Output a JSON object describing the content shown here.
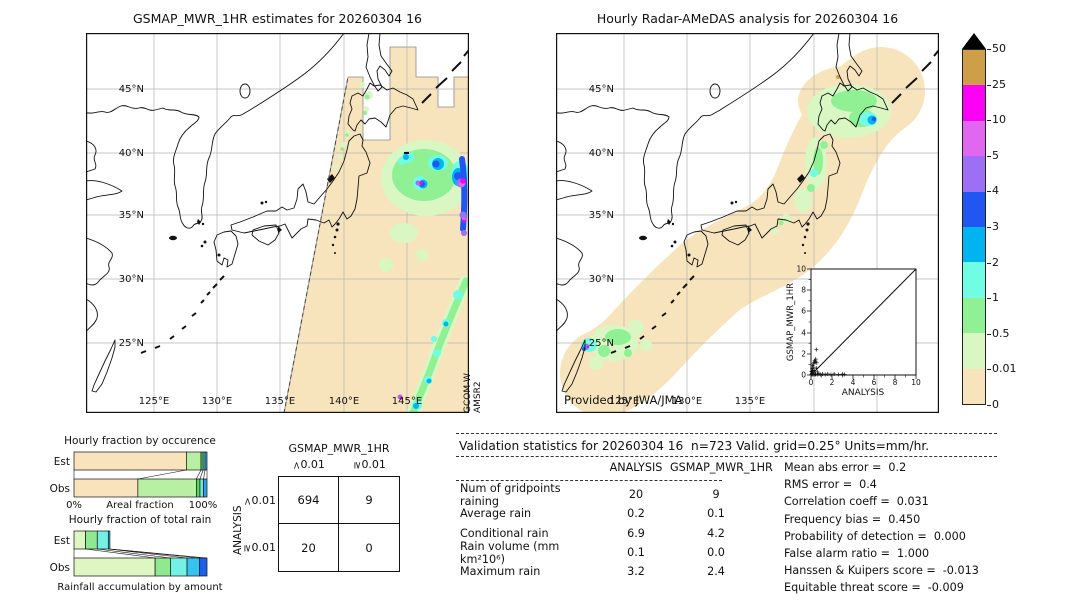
{
  "figure": {
    "background": "#ffffff"
  },
  "colorbar": {
    "tick_labels": [
      "50",
      "25",
      "10",
      "5",
      "4",
      "3",
      "2",
      "1",
      "0.5",
      "0.01",
      "0"
    ],
    "colors": [
      "#cf9e49",
      "#fb00f5",
      "#e167f0",
      "#9c6ff4",
      "#2156f2",
      "#00b5ef",
      "#70fde4",
      "#8ff193",
      "#d8f7c3",
      "#f8e4bc"
    ],
    "overflow_marker_color": "#000000"
  },
  "chart_data": [
    {
      "type": "map",
      "id": "gsmap_map",
      "title": "GSMAP_MWR_1HR estimates for 20260304 16",
      "lat_ticks": [
        "45°N",
        "40°N",
        "35°N",
        "30°N",
        "25°N"
      ],
      "lon_ticks": [
        "125°E",
        "130°E",
        "135°E",
        "140°E",
        "145°E"
      ],
      "side_annotation": [
        "GCOM-W",
        "AMSR2"
      ],
      "swath_fill": "#f8e4bc",
      "notes": "Satellite microwave swath over the western Pacific with rain cells east of Japan"
    },
    {
      "type": "map",
      "id": "radar_map",
      "title": "Hourly Radar-AMeDAS analysis for 20260304 16",
      "lat_ticks": [
        "45°N",
        "40°N",
        "35°N",
        "30°N",
        "25°N"
      ],
      "lon_ticks": [
        "125°E",
        "130°E",
        "135°E"
      ],
      "credit": "Provided by JWA/JMA",
      "coverage_fill": "#f8e4bc",
      "notes": "Radar coverage band along the Japanese archipelago with light rain over Hokkaido, Tohoku and near Taiwan"
    },
    {
      "type": "bar",
      "id": "occurrence",
      "title": "Hourly fraction by occurence",
      "orientation": "horizontal-stacked",
      "categories": [
        "Est",
        "Obs"
      ],
      "x_left_label": "0%",
      "xlabel": "Areal fraction",
      "x_right_label": "100%",
      "segment_colors": [
        "#f8e3bc",
        "#b9efa2",
        "#59d65e",
        "#6fe9df",
        "#2f9ff0"
      ],
      "series": [
        {
          "name": "Est",
          "fractions": [
            0.845,
            0.11,
            0.016,
            0.014,
            0.015
          ]
        },
        {
          "name": "Obs",
          "fractions": [
            0.48,
            0.44,
            0.027,
            0.027,
            0.026
          ]
        }
      ]
    },
    {
      "type": "bar",
      "id": "total_rain",
      "title": "Hourly fraction of total rain",
      "orientation": "horizontal-stacked",
      "categories": [
        "Est",
        "Obs"
      ],
      "xlabel": "Rainfall accumulation by amount",
      "segment_colors": [
        "#ddf6c2",
        "#8fe98f",
        "#74f1e2",
        "#38c2f2",
        "#1e60e8"
      ],
      "series": [
        {
          "name": "Est",
          "fractions": [
            0.087,
            0.088,
            0.083,
            0.012,
            0
          ]
        },
        {
          "name": "Obs",
          "fractions": [
            0.61,
            0.115,
            0.125,
            0.095,
            0.055
          ]
        }
      ]
    },
    {
      "type": "table",
      "id": "contingency",
      "title": "GSMAP_MWR_1HR",
      "row_axis": "ANALYSIS",
      "col_labels": [
        {
          "op": "<",
          "num": "0.01"
        },
        {
          "op": "≥",
          "num": "0.01"
        }
      ],
      "row_labels": [
        {
          "op": "<",
          "num": "0.01"
        },
        {
          "op": "≥",
          "num": "0.01"
        }
      ],
      "cells": [
        [
          "694",
          "9"
        ],
        [
          "20",
          "0"
        ]
      ]
    },
    {
      "type": "table",
      "id": "validation",
      "title": "Validation statistics for 20260304 16  n=723 Valid. grid=0.25° Units=mm/hr.",
      "col_headers": [
        "ANALYSIS",
        "GSMAP_MWR_1HR"
      ],
      "rows": [
        {
          "label": "Num of gridpoints raining",
          "analysis": "20",
          "gsmap": "9"
        },
        {
          "label": "Average rain",
          "analysis": "0.2",
          "gsmap": "0.1"
        },
        {
          "label": "Conditional rain",
          "analysis": "6.9",
          "gsmap": "4.2"
        },
        {
          "label": "Rain volume (mm km²10⁶)",
          "analysis": "0.1",
          "gsmap": "0.0"
        },
        {
          "label": "Maximum rain",
          "analysis": "3.2",
          "gsmap": "2.4"
        }
      ]
    },
    {
      "type": "list",
      "id": "scores",
      "rows": [
        {
          "label": "Mean abs error =",
          "value": "0.2"
        },
        {
          "label": "RMS error =",
          "value": "0.4"
        },
        {
          "label": "Correlation coeff =",
          "value": "0.031"
        },
        {
          "label": "Frequency bias =",
          "value": "0.450"
        },
        {
          "label": "Probability of detection =",
          "value": "0.000"
        },
        {
          "label": "False alarm ratio =",
          "value": "1.000"
        },
        {
          "label": "Hanssen & Kuipers score =",
          "value": "-0.013"
        },
        {
          "label": "Equitable threat score =",
          "value": "-0.009"
        }
      ]
    },
    {
      "type": "scatter",
      "id": "inset_scatter",
      "xlabel": "ANALYSIS",
      "ylabel": "GSMAP_MWR_1HR",
      "xlim": [
        0,
        10
      ],
      "ylim": [
        0,
        10
      ],
      "ticks": [
        "0",
        "2",
        "4",
        "6",
        "8",
        "10"
      ],
      "diagonal": true,
      "marker": "+",
      "points": [
        [
          0.05,
          0.05
        ],
        [
          0.08,
          0.15
        ],
        [
          0.1,
          0.3
        ],
        [
          0.12,
          0.6
        ],
        [
          0.15,
          0.9
        ],
        [
          0.18,
          0.45
        ],
        [
          0.2,
          0.2
        ],
        [
          0.22,
          0.75
        ],
        [
          0.25,
          1.05
        ],
        [
          0.3,
          1.2
        ],
        [
          0.3,
          0.4
        ],
        [
          0.35,
          1.35
        ],
        [
          0.4,
          1.25
        ],
        [
          0.42,
          0.1
        ],
        [
          0.45,
          1.5
        ],
        [
          0.5,
          2.4
        ],
        [
          0.5,
          0.65
        ],
        [
          0.55,
          1.15
        ],
        [
          0.6,
          0.3
        ],
        [
          0.65,
          0.05
        ],
        [
          0.75,
          0.12
        ],
        [
          0.9,
          0.05
        ],
        [
          1.1,
          0.1
        ],
        [
          1.35,
          0.05
        ],
        [
          1.6,
          0.1
        ],
        [
          1.9,
          0.05
        ],
        [
          2.2,
          0.1
        ],
        [
          2.6,
          0.05
        ],
        [
          3.0,
          0.08
        ],
        [
          3.2,
          0.05
        ],
        [
          0.05,
          0.35
        ],
        [
          0.1,
          0.05
        ],
        [
          0.2,
          0.05
        ],
        [
          0.32,
          0.05
        ],
        [
          0.45,
          0.05
        ]
      ]
    },
    {
      "type": "heatmap-legend",
      "id": "rain_scale",
      "units": "mm/hr",
      "boundaries": [
        0,
        0.01,
        0.5,
        1,
        2,
        3,
        4,
        5,
        10,
        25,
        50
      ]
    }
  ]
}
